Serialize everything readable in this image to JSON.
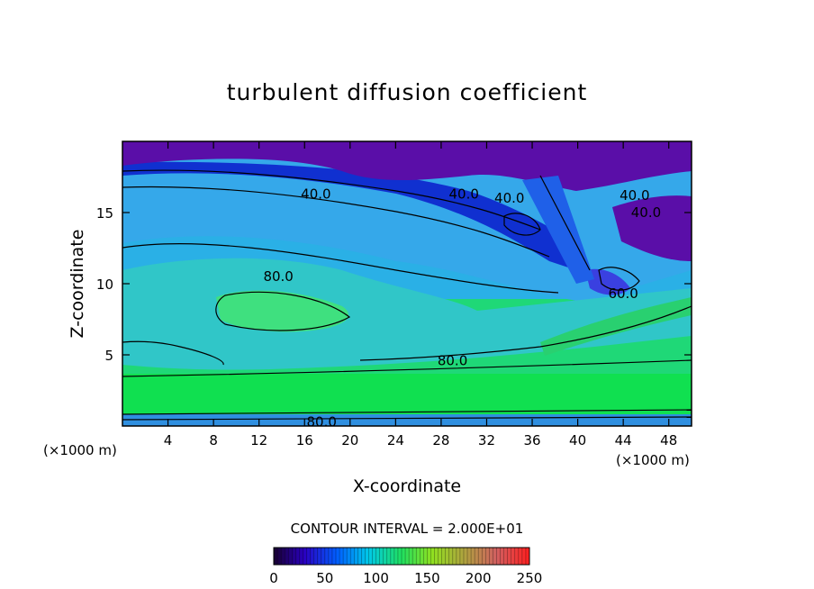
{
  "chart_data": {
    "type": "heatmap",
    "title": "turbulent diffusion coefficient",
    "xlabel": "X-coordinate",
    "ylabel": "Z-coordinate",
    "x_unit": "(×1000 m)",
    "x_unit_right": "(×1000 m)",
    "xlim": [
      0,
      50
    ],
    "ylim": [
      0,
      20
    ],
    "x_ticks": [
      4,
      8,
      12,
      16,
      20,
      24,
      28,
      32,
      36,
      40,
      44,
      48
    ],
    "x_tick_labels": [
      "4",
      "8",
      "12",
      "16",
      "20",
      "24",
      "28",
      "32",
      "36",
      "40",
      "44",
      "48"
    ],
    "y_ticks": [
      5,
      10,
      15
    ],
    "y_tick_labels": [
      "5",
      "10",
      "15"
    ],
    "contour_interval": "CONTOUR INTERVAL = 2.000E+01",
    "contour_labels": [
      {
        "text": "40.0",
        "x": 17,
        "z": 16.3
      },
      {
        "text": "40.0",
        "x": 30,
        "z": 16.3
      },
      {
        "text": "40.0",
        "x": 34,
        "z": 16.0
      },
      {
        "text": "40.0",
        "x": 45,
        "z": 16.2
      },
      {
        "text": "40.0",
        "x": 46,
        "z": 15.0
      },
      {
        "text": "80.0",
        "x": 13.7,
        "z": 10.5
      },
      {
        "text": "60.0",
        "x": 44,
        "z": 9.3
      },
      {
        "text": "80.0",
        "x": 29,
        "z": 4.6
      },
      {
        "text": "80.0",
        "x": 17.5,
        "z": 0.3
      }
    ],
    "colorbar": {
      "min": 0,
      "max": 250,
      "tick_values": [
        0,
        50,
        100,
        150,
        200,
        250
      ],
      "tick_labels": [
        "0",
        "50",
        "100",
        "150",
        "200",
        "250"
      ]
    },
    "field_description": "diffusion coefficient values 0-250 plotted on x-z plane"
  }
}
